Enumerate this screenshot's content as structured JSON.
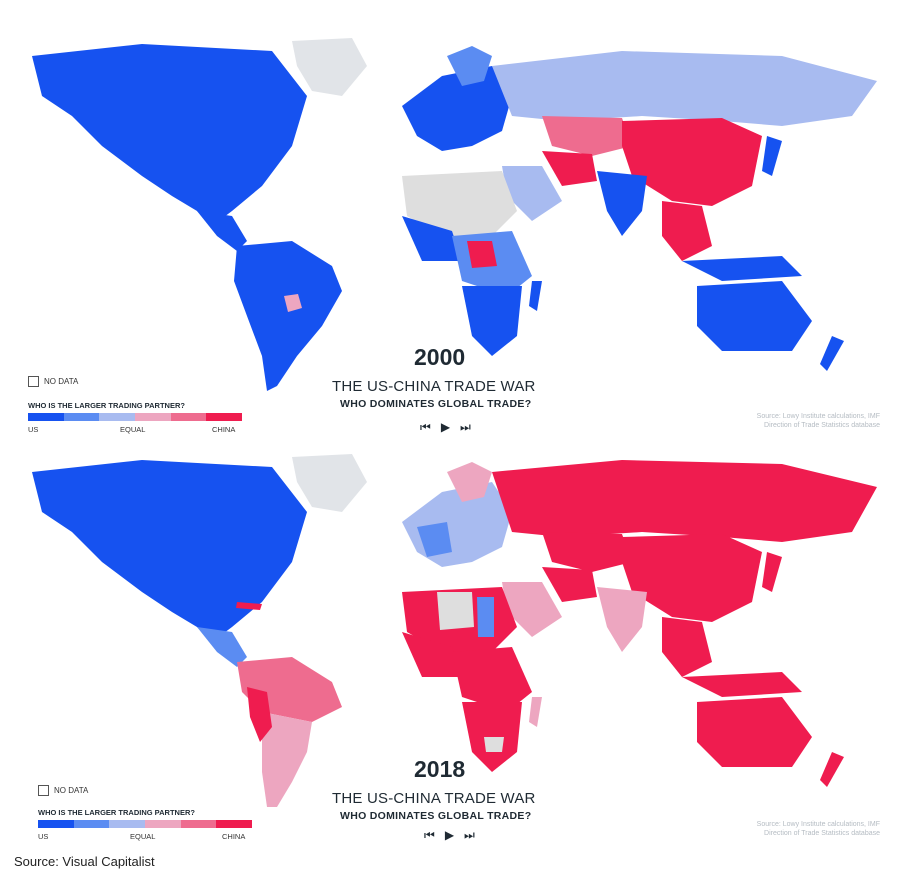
{
  "colors": {
    "us": "#1652f0",
    "us_light": "#5b8cf2",
    "equal_blue": "#a8bbf0",
    "equal": "#dedede",
    "china_light": "#eda6c0",
    "china_mid": "#ee6c8f",
    "china": "#ef1c4f",
    "nodata": "#e1e4e8"
  },
  "panels": [
    {
      "year": "2000",
      "title": "THE US-CHINA TRADE WAR",
      "subtitle": "WHO DOMINATES GLOBAL TRADE?",
      "nodata_label": "NO DATA",
      "legend_question": "WHO IS THE LARGER TRADING PARTNER?",
      "legend_us": "US",
      "legend_equal": "EQUAL",
      "legend_china": "CHINA",
      "source_line1": "Source: Lowy Institute calculations, IMF",
      "source_line2": "Direction of Trade Statistics database",
      "controls": {
        "first": "⏮",
        "play": "▶",
        "last": "⏭"
      }
    },
    {
      "year": "2018",
      "title": "THE US-CHINA TRADE WAR",
      "subtitle": "WHO DOMINATES GLOBAL TRADE?",
      "nodata_label": "NO DATA",
      "legend_question": "WHO IS THE LARGER TRADING PARTNER?",
      "legend_us": "US",
      "legend_equal": "EQUAL",
      "legend_china": "CHINA",
      "source_line1": "Source: Lowy Institute calculations, IMF",
      "source_line2": "Direction of Trade Statistics database",
      "controls": {
        "first": "⏮",
        "play": "▶",
        "last": "⏭"
      }
    }
  ],
  "footer": "Source: Visual Capitalist"
}
